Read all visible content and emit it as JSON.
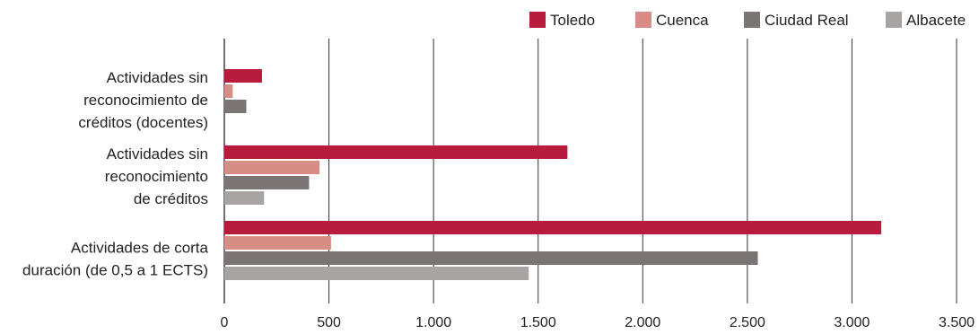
{
  "chart_data": {
    "type": "bar",
    "orientation": "horizontal",
    "categories": [
      [
        "Actividades sin",
        "reconocimiento de",
        "créditos (docentes)"
      ],
      [
        "Actividades sin",
        "reconocimiento",
        "de créditos"
      ],
      [
        "Actividades de corta",
        "duración (de 0,5 a 1 ECTS)"
      ]
    ],
    "series": [
      {
        "name": "Toledo",
        "color": "#b71c3c",
        "values": [
          180,
          1640,
          3140
        ]
      },
      {
        "name": "Cuenca",
        "color": "#d88c86",
        "values": [
          40,
          455,
          510
        ]
      },
      {
        "name": "Ciudad Real",
        "color": "#7b7474",
        "values": [
          105,
          405,
          2550
        ]
      },
      {
        "name": "Albacete",
        "color": "#a9a4a4",
        "values": [
          0,
          190,
          1455
        ]
      }
    ],
    "xlim": [
      0,
      3500
    ],
    "xticks": [
      0,
      500,
      1000,
      1500,
      2000,
      2500,
      3000,
      3500
    ],
    "xtick_labels": [
      "0",
      "500",
      "1.000",
      "1.500",
      "2.000",
      "2.500",
      "3.000",
      "3.500"
    ],
    "grid": "vertical",
    "legend_position": "top-right"
  }
}
